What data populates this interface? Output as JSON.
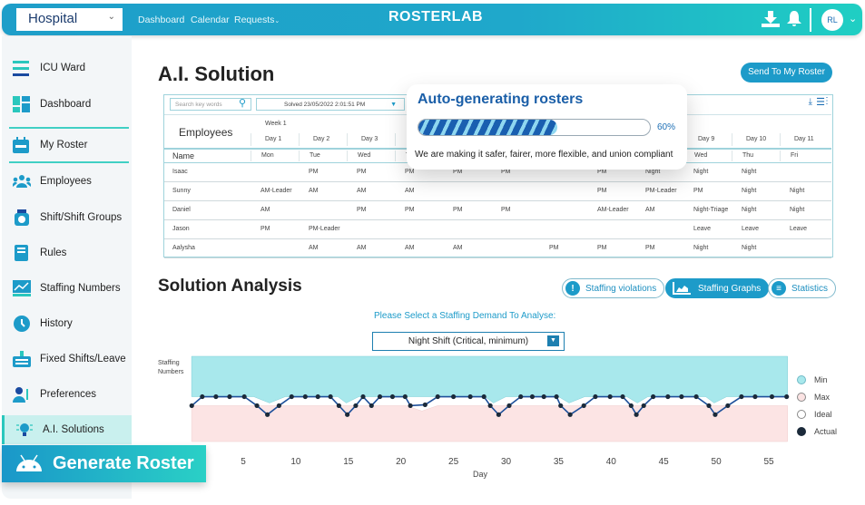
{
  "topbar": {
    "org": "Hospital",
    "nav": [
      "Dashboard",
      "Calendar",
      "Requests"
    ],
    "logo": "ROSTERLAB",
    "avatar": "RL"
  },
  "sidebar": {
    "items": [
      {
        "label": "ICU Ward",
        "icon": "menu-icon"
      },
      {
        "label": "Dashboard",
        "icon": "dashboard-icon"
      },
      {
        "label": "My Roster",
        "icon": "calendar-icon"
      },
      {
        "label": "Employees",
        "icon": "people-icon"
      },
      {
        "label": "Shift/Shift Groups",
        "icon": "clock-icon"
      },
      {
        "label": "Rules",
        "icon": "book-icon"
      },
      {
        "label": "Staffing Numbers",
        "icon": "chart-icon"
      },
      {
        "label": "History",
        "icon": "history-icon"
      },
      {
        "label": "Fixed Shifts/Leave",
        "icon": "keyboard-icon"
      },
      {
        "label": "Preferences",
        "icon": "user-preferences-icon"
      },
      {
        "label": "A.I. Solutions",
        "icon": "lightbulb-icon"
      }
    ]
  },
  "generate": "Generate Roster",
  "page": {
    "title": "A.I. Solution",
    "send": "Send To My Roster"
  },
  "table": {
    "search_placeholder": "Search key words",
    "solved": "Solved 23/05/2022 2:01:51 PM",
    "employees": "Employees",
    "week": "Week 1",
    "name_header": "Name",
    "days": [
      "Day 1",
      "Day 2",
      "Day 3",
      "",
      "",
      "",
      "",
      "",
      "",
      "Day 9",
      "Day 10",
      "Day 11"
    ],
    "weekdays": [
      "Mon",
      "Tue",
      "Wed",
      "Thu",
      "",
      "",
      "",
      "",
      "",
      "Wed",
      "Thu",
      "Fri"
    ],
    "rows": [
      {
        "name": "Isaac",
        "cells": [
          "",
          "PM",
          "PM",
          "PM",
          "PM",
          "PM",
          "",
          "PM",
          "Night",
          "Night",
          "Night",
          ""
        ]
      },
      {
        "name": "Sunny",
        "cells": [
          "AM-Leader",
          "AM",
          "AM",
          "AM",
          "",
          "",
          "",
          "PM",
          "PM-Leader",
          "PM",
          "Night",
          "Night"
        ]
      },
      {
        "name": "Daniel",
        "cells": [
          "AM",
          "",
          "PM",
          "PM",
          "PM",
          "PM",
          "",
          "AM-Leader",
          "AM",
          "Night-Triage",
          "Night",
          "Night"
        ]
      },
      {
        "name": "Jason",
        "cells": [
          "PM",
          "PM-Leader",
          "",
          "",
          "",
          "",
          "",
          "",
          "",
          "Leave",
          "Leave",
          "Leave"
        ]
      },
      {
        "name": "Aalysha",
        "cells": [
          "",
          "AM",
          "AM",
          "AM",
          "AM",
          "",
          "PM",
          "PM",
          "PM",
          "Night",
          "Night",
          ""
        ]
      }
    ]
  },
  "overlay": {
    "title": "Auto-generating rosters",
    "progress": 60,
    "progress_label": "60%",
    "subtitle": "We are making it safer, fairer, more flexible, and union compliant"
  },
  "analysis": {
    "title": "Solution Analysis",
    "tabs": [
      "Staffing violations",
      "Staffing Graphs",
      "Statistics"
    ],
    "prompt": "Please Select a Staffing Demand To Analyse:",
    "selected": "Night Shift (Critical, minimum)"
  },
  "colors": {
    "accent": "#1d9bc9",
    "teal": "#2ad0c6",
    "min": "#a8e8ec",
    "max": "#fbe3e3",
    "actual": "#1b2a3a",
    "line": "#1d4f9a"
  },
  "chart_data": {
    "type": "area",
    "ylabel": "Staffing Numbers",
    "xlabel": "Day",
    "xticks": [
      5,
      10,
      15,
      20,
      25,
      30,
      35,
      40,
      45,
      50,
      55
    ],
    "xlim": [
      0,
      57
    ],
    "ylim": [
      0,
      9.5
    ],
    "legend": [
      "Min",
      "Max",
      "Ideal",
      "Actual"
    ],
    "legend_position": "right",
    "min_band": {
      "upper": 9.5,
      "lower": [
        [
          0,
          5
        ],
        [
          6,
          5
        ],
        [
          7.5,
          4.3
        ],
        [
          9,
          5
        ],
        [
          14,
          5
        ],
        [
          14.8,
          4.3
        ],
        [
          16,
          5
        ],
        [
          28,
          5
        ],
        [
          28.8,
          4.3
        ],
        [
          30,
          5
        ],
        [
          35,
          5
        ],
        [
          36,
          4.3
        ],
        [
          37.5,
          5
        ],
        [
          41.5,
          5
        ],
        [
          42.5,
          4.3
        ],
        [
          43.5,
          5
        ],
        [
          49,
          5
        ],
        [
          49.8,
          4.3
        ],
        [
          51,
          5
        ],
        [
          56.8,
          5
        ]
      ]
    },
    "max_band": {
      "lower": 0,
      "upper": [
        [
          0,
          4
        ],
        [
          20.5,
          4
        ],
        [
          22,
          3.4
        ],
        [
          23.5,
          4
        ],
        [
          56.8,
          4
        ]
      ]
    },
    "actual": {
      "x": [
        0.1,
        1.1,
        2.4,
        3.7,
        5.1,
        6.3,
        7.3,
        8.4,
        9.6,
        10.9,
        12.1,
        13.3,
        14.1,
        14.9,
        15.7,
        16.4,
        17.2,
        18.0,
        19.2,
        20.4,
        20.9,
        22.3,
        23.5,
        25.0,
        26.6,
        27.9,
        28.5,
        29.3,
        30.3,
        31.4,
        32.5,
        33.6,
        34.8,
        35.2,
        36.1,
        37.4,
        38.5,
        39.9,
        41.1,
        41.9,
        42.4,
        43.1,
        44.0,
        45.4,
        46.7,
        48.1,
        49.3,
        49.9,
        51.1,
        52.4,
        53.7,
        55.3,
        56.7
      ],
      "y": [
        4,
        5,
        5,
        5,
        5,
        4,
        3,
        4,
        5,
        5,
        5,
        5,
        4,
        3,
        4,
        5,
        4,
        5,
        5,
        5,
        4,
        4.1,
        5,
        5,
        5,
        5,
        4,
        3,
        4,
        5,
        5,
        5,
        5,
        4,
        3,
        4,
        5,
        5,
        5,
        4,
        3,
        4,
        5,
        5,
        5,
        5,
        4,
        3,
        4,
        5,
        5,
        5,
        5
      ]
    }
  }
}
